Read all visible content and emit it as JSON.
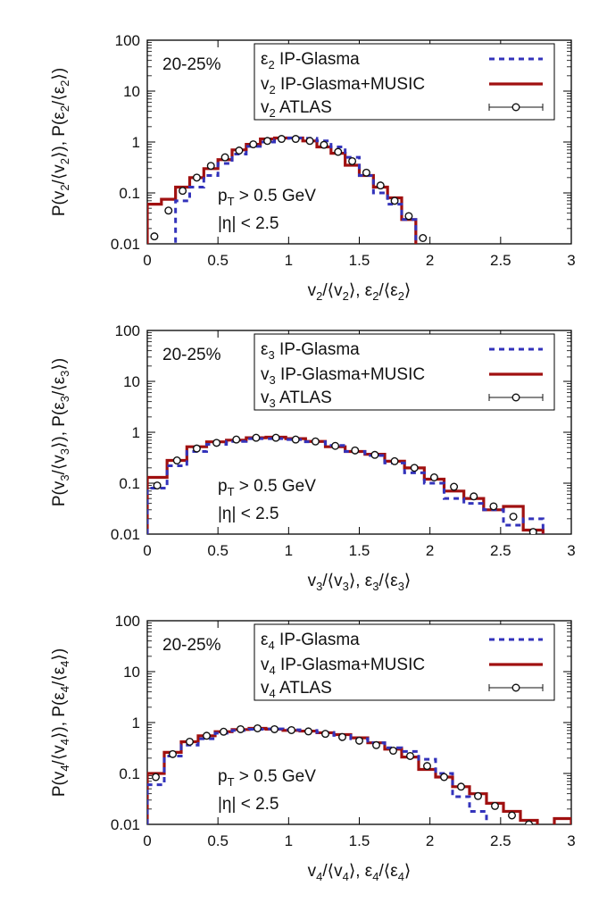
{
  "colors": {
    "eps": "#3333bb",
    "hydro": "#a01010",
    "atlas": "#111111"
  },
  "chart_data": [
    {
      "type": "line",
      "harmonic": "2",
      "label": "20-25%",
      "cut_pt": "p_T > 0.5 GeV",
      "cut_eta": "|η| < 2.5",
      "xlabel": "v_2/⟨v_2⟩, ε_2/⟨ε_2⟩",
      "ylabel": "P(v_2/⟨v_2⟩), P(ε_2/⟨ε_2⟩)",
      "xlim": [
        0,
        3
      ],
      "ylim": [
        0.01,
        100
      ],
      "yscale": "log",
      "xticks": [
        "0",
        "0.5",
        "1",
        "1.5",
        "2",
        "2.5",
        "3"
      ],
      "yticks": [
        "0.01",
        "0.1",
        "1",
        "10",
        "100"
      ],
      "legend": {
        "position": "top-right"
      },
      "series": [
        {
          "name": "ε_2 IP-Glasma",
          "style": "histogram-dashed",
          "edges": [
            0.0,
            0.1,
            0.2,
            0.3,
            0.4,
            0.5,
            0.6,
            0.7,
            0.8,
            0.9,
            1.0,
            1.1,
            1.2,
            1.3,
            1.4,
            1.5,
            1.6,
            1.7,
            1.8,
            1.9,
            2.0
          ],
          "values": [
            0.008,
            0.008,
            0.07,
            0.13,
            0.22,
            0.38,
            0.58,
            0.82,
            1.0,
            1.1,
            1.2,
            1.18,
            1.05,
            0.8,
            0.5,
            0.22,
            0.1,
            0.06,
            0.03,
            0.008
          ]
        },
        {
          "name": "v_2 IP-Glasma+MUSIC",
          "style": "histogram-solid",
          "edges": [
            0.0,
            0.1,
            0.2,
            0.3,
            0.4,
            0.5,
            0.6,
            0.7,
            0.8,
            0.9,
            1.0,
            1.1,
            1.2,
            1.3,
            1.4,
            1.5,
            1.6,
            1.7,
            1.8,
            1.9,
            2.0
          ],
          "values": [
            0.06,
            0.075,
            0.13,
            0.2,
            0.3,
            0.45,
            0.7,
            0.9,
            1.15,
            1.2,
            1.2,
            1.05,
            0.8,
            0.6,
            0.35,
            0.22,
            0.13,
            0.08,
            0.03,
            0.008
          ]
        },
        {
          "name": "v_2 ATLAS",
          "style": "points-errorbars",
          "x": [
            0.05,
            0.15,
            0.25,
            0.35,
            0.45,
            0.55,
            0.65,
            0.75,
            0.85,
            0.95,
            1.05,
            1.15,
            1.25,
            1.35,
            1.45,
            1.55,
            1.65,
            1.75,
            1.85,
            1.95
          ],
          "y": [
            0.014,
            0.045,
            0.11,
            0.2,
            0.34,
            0.5,
            0.68,
            0.9,
            1.05,
            1.15,
            1.15,
            1.05,
            0.88,
            0.64,
            0.42,
            0.25,
            0.14,
            0.07,
            0.035,
            0.013
          ]
        }
      ]
    },
    {
      "type": "line",
      "harmonic": "3",
      "label": "20-25%",
      "cut_pt": "p_T > 0.5 GeV",
      "cut_eta": "|η| < 2.5",
      "xlabel": "v_3/⟨v_3⟩, ε_3/⟨ε_3⟩",
      "ylabel": "P(v_3/⟨v_3⟩), P(ε_3/⟨ε_3⟩)",
      "xlim": [
        0,
        3
      ],
      "ylim": [
        0.01,
        100
      ],
      "yscale": "log",
      "xticks": [
        "0",
        "0.5",
        "1",
        "1.5",
        "2",
        "2.5",
        "3"
      ],
      "yticks": [
        "0.01",
        "0.1",
        "1",
        "10",
        "100"
      ],
      "legend": {
        "position": "top-right"
      },
      "series": [
        {
          "name": "ε_3 IP-Glasma",
          "style": "histogram-dashed",
          "edges": [
            0.0,
            0.14,
            0.28,
            0.42,
            0.56,
            0.7,
            0.84,
            0.98,
            1.12,
            1.26,
            1.4,
            1.54,
            1.68,
            1.82,
            1.96,
            2.1,
            2.24,
            2.38,
            2.52,
            2.66,
            2.8
          ],
          "values": [
            0.08,
            0.22,
            0.42,
            0.58,
            0.66,
            0.75,
            0.75,
            0.72,
            0.65,
            0.55,
            0.42,
            0.35,
            0.25,
            0.16,
            0.1,
            0.05,
            0.04,
            0.03,
            0.015,
            0.02
          ]
        },
        {
          "name": "v_3 IP-Glasma+MUSIC",
          "style": "histogram-solid",
          "edges": [
            0.0,
            0.14,
            0.28,
            0.42,
            0.56,
            0.7,
            0.84,
            0.98,
            1.12,
            1.26,
            1.4,
            1.54,
            1.68,
            1.82,
            1.96,
            2.1,
            2.24,
            2.38,
            2.52,
            2.66,
            2.8
          ],
          "values": [
            0.13,
            0.28,
            0.52,
            0.65,
            0.7,
            0.78,
            0.8,
            0.75,
            0.66,
            0.52,
            0.42,
            0.37,
            0.27,
            0.2,
            0.12,
            0.07,
            0.05,
            0.03,
            0.035,
            0.012
          ]
        },
        {
          "name": "v_3 ATLAS",
          "style": "points-errorbars",
          "x": [
            0.07,
            0.21,
            0.35,
            0.49,
            0.63,
            0.77,
            0.91,
            1.05,
            1.19,
            1.33,
            1.47,
            1.61,
            1.75,
            1.89,
            2.03,
            2.17,
            2.31,
            2.45,
            2.59,
            2.73
          ],
          "y": [
            0.09,
            0.28,
            0.48,
            0.62,
            0.72,
            0.78,
            0.78,
            0.72,
            0.66,
            0.54,
            0.44,
            0.36,
            0.27,
            0.2,
            0.13,
            0.085,
            0.055,
            0.035,
            0.022,
            0.011
          ]
        }
      ]
    },
    {
      "type": "line",
      "harmonic": "4",
      "label": "20-25%",
      "cut_pt": "p_T > 0.5 GeV",
      "cut_eta": "|η| < 2.5",
      "xlabel": "v_4/⟨v_4⟩, ε_4/⟨ε_4⟩",
      "ylabel": "P(v_4/⟨v_4⟩), P(ε_4/⟨ε_4⟩)",
      "xlim": [
        0,
        3
      ],
      "ylim": [
        0.01,
        100
      ],
      "yscale": "log",
      "xticks": [
        "0",
        "0.5",
        "1",
        "1.5",
        "2",
        "2.5",
        "3"
      ],
      "yticks": [
        "0.01",
        "0.1",
        "1",
        "10",
        "100"
      ],
      "legend": {
        "position": "top-right"
      },
      "series": [
        {
          "name": "ε_4 IP-Glasma",
          "style": "histogram-dashed",
          "edges": [
            0.0,
            0.12,
            0.24,
            0.36,
            0.48,
            0.6,
            0.72,
            0.84,
            0.96,
            1.08,
            1.2,
            1.32,
            1.44,
            1.56,
            1.68,
            1.8,
            1.92,
            2.04,
            2.16,
            2.28,
            2.4
          ],
          "values": [
            0.06,
            0.22,
            0.36,
            0.48,
            0.62,
            0.7,
            0.74,
            0.75,
            0.72,
            0.7,
            0.64,
            0.56,
            0.48,
            0.4,
            0.32,
            0.27,
            0.19,
            0.1,
            0.035,
            0.018
          ]
        },
        {
          "name": "v_4 IP-Glasma+MUSIC",
          "style": "histogram-solid",
          "edges": [
            0.0,
            0.12,
            0.24,
            0.36,
            0.48,
            0.6,
            0.72,
            0.84,
            0.96,
            1.08,
            1.2,
            1.32,
            1.44,
            1.56,
            1.68,
            1.8,
            1.92,
            2.04,
            2.16,
            2.28,
            2.4,
            2.52,
            2.64,
            2.76,
            2.88,
            3.0
          ],
          "values": [
            0.1,
            0.26,
            0.42,
            0.55,
            0.66,
            0.73,
            0.77,
            0.74,
            0.7,
            0.68,
            0.63,
            0.58,
            0.5,
            0.4,
            0.3,
            0.21,
            0.12,
            0.085,
            0.055,
            0.04,
            0.026,
            0.018,
            0.012,
            0.009,
            0.013
          ]
        },
        {
          "name": "v_4 ATLAS",
          "style": "points-errorbars",
          "x": [
            0.06,
            0.18,
            0.3,
            0.42,
            0.54,
            0.66,
            0.78,
            0.9,
            1.02,
            1.14,
            1.26,
            1.38,
            1.5,
            1.62,
            1.74,
            1.86,
            1.98,
            2.1,
            2.22,
            2.34,
            2.46,
            2.58,
            2.7
          ],
          "y": [
            0.085,
            0.24,
            0.42,
            0.55,
            0.66,
            0.74,
            0.77,
            0.74,
            0.71,
            0.67,
            0.6,
            0.52,
            0.44,
            0.36,
            0.28,
            0.22,
            0.14,
            0.085,
            0.055,
            0.036,
            0.023,
            0.015,
            0.01
          ]
        }
      ]
    }
  ]
}
